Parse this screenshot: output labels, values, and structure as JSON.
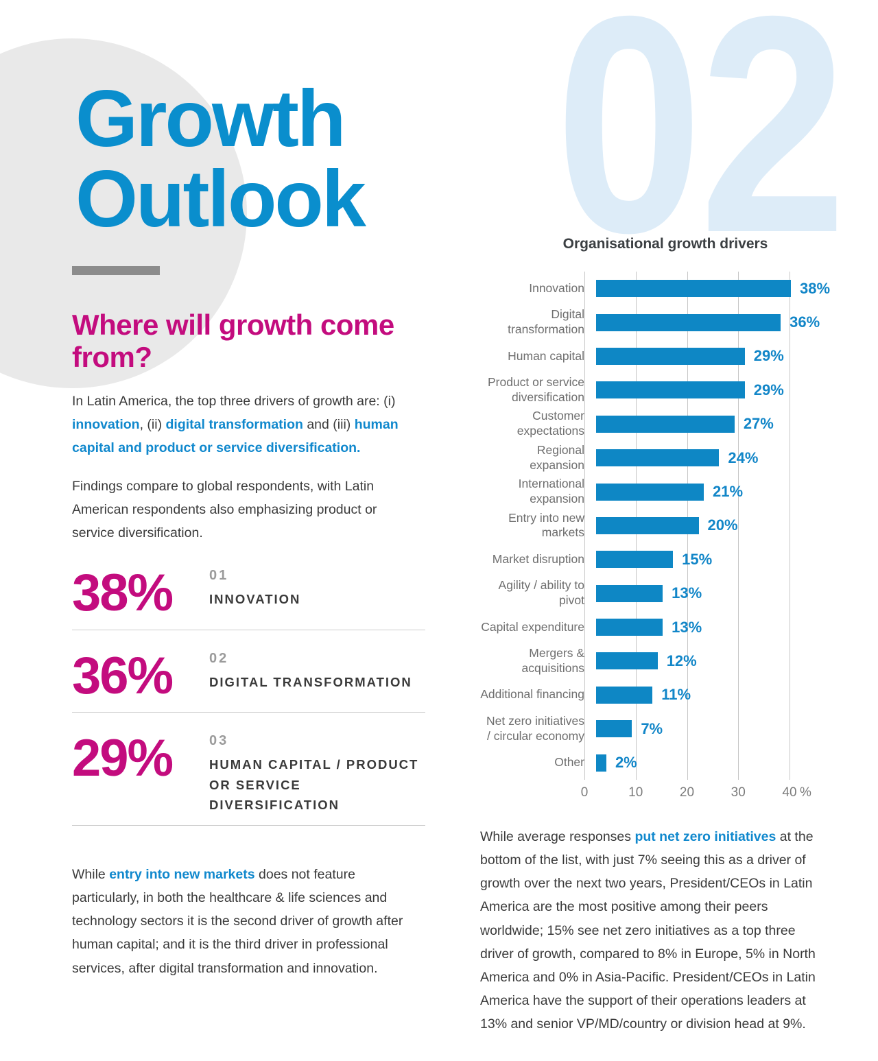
{
  "page": {
    "section_number": "02",
    "title_lines": [
      "Growth",
      "Outlook"
    ],
    "question_heading": "Where will growth come from?"
  },
  "intro": {
    "prefix": "In Latin America, the top three drivers of growth are: (i) ",
    "hl1": "innovation",
    "mid1": ", (ii) ",
    "hl2": "digital transformation",
    "mid2": " and (iii) ",
    "hl3": "human capital and product or service diversification."
  },
  "paragraph2": "Findings compare to global respondents, with Latin American respondents also emphasizing product or service diversification.",
  "stats": [
    {
      "value": "38%",
      "rank": "01",
      "label": "INNOVATION"
    },
    {
      "value": "36%",
      "rank": "02",
      "label": "DIGITAL TRANSFORMATION"
    },
    {
      "value": "29%",
      "rank": "03",
      "label": "HUMAN CAPITAL / PRODUCT OR SERVICE DIVERSIFICATION"
    }
  ],
  "bottom_left": {
    "prefix": "While ",
    "hl": "entry into new markets",
    "suffix": " does not feature particularly, in both the healthcare & life sciences and technology sectors it is the second driver of growth after human capital; and it is the third driver in professional services, after digital transformation and innovation."
  },
  "bottom_right": {
    "prefix": "While average responses ",
    "hl": "put net zero initiatives",
    "suffix": " at the bottom of the list, with just 7% seeing this as a driver of growth over the next two years, President/CEOs in Latin America are the most positive among their peers worldwide; 15% see net zero initiatives as a top three driver of growth, compared to 8% in Europe, 5% in North America and 0% in Asia-Pacific. President/CEOs in Latin America have the support of their operations leaders at 13% and senior VP/MD/country or division head at 9%."
  },
  "chart_data": {
    "type": "bar",
    "orientation": "horizontal",
    "title": "Organisational growth drivers",
    "categories": [
      "Innovation",
      "Digital transformation",
      "Human capital",
      "Product or service diversification",
      "Customer expectations",
      "Regional expansion",
      "International expansion",
      "Entry into new markets",
      "Market disruption",
      "Agility / ability to pivot",
      "Capital expenditure",
      "Mergers & acquisitions",
      "Additional financing",
      "Net zero initiatives / circular economy",
      "Other"
    ],
    "values": [
      38,
      36,
      29,
      29,
      27,
      24,
      21,
      20,
      15,
      13,
      13,
      12,
      11,
      7,
      2
    ],
    "unit": "%",
    "xlim": [
      0,
      40
    ],
    "x_ticks": [
      0,
      10,
      20,
      30,
      40
    ],
    "x_axis_unit": "%",
    "grid": true,
    "legend": false
  },
  "colors": {
    "title_blue": "#0a8ecd",
    "link_blue": "#1088cd",
    "bar_blue": "#0e87c5",
    "value_label_blue": "#1286c8",
    "magenta": "#c30c7e",
    "section_number_blue": "#ddecf8",
    "circle_gray": "#e9e9e9",
    "body_text": "#3a3a3a"
  }
}
